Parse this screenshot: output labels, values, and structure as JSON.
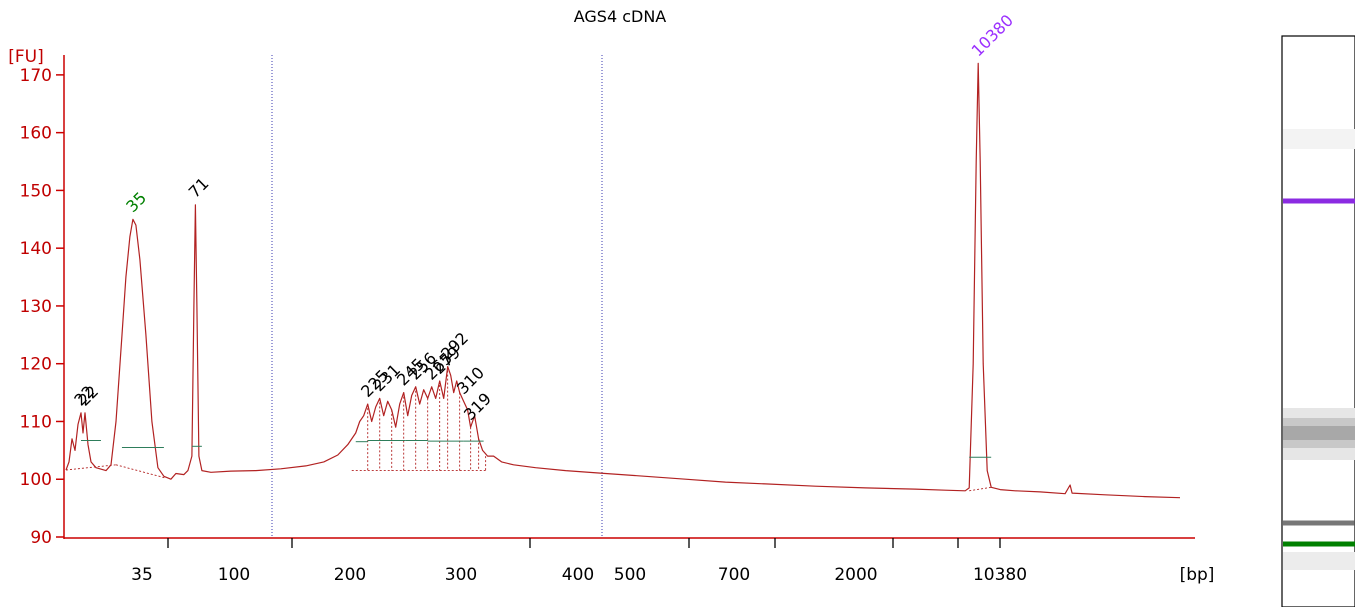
{
  "colors": {
    "axis": "#cc0000",
    "trace": "#b22222",
    "marker_lower": "#008000",
    "marker_upper": "#9b30ff",
    "peak_label": "#000000",
    "guide": "#3a3ab0",
    "baseline": "#2e7d5b"
  },
  "chart_data": {
    "type": "line",
    "title": "AGS4 cDNA",
    "ylabel": "[FU]",
    "xlabel": "[bp]",
    "ylim": [
      90,
      175
    ],
    "yticks": [
      90,
      100,
      110,
      120,
      130,
      140,
      150,
      160,
      170
    ],
    "xtick_labels": [
      "35",
      "100",
      "200",
      "300",
      "400",
      "500",
      "700",
      "2000",
      "10380"
    ],
    "grid": false,
    "series": [
      {
        "values": [
          [
            0,
            101.6
          ],
          [
            3,
            103
          ],
          [
            6,
            107
          ],
          [
            9,
            105
          ],
          [
            12,
            109.5
          ],
          [
            15,
            111.5
          ],
          [
            17,
            108
          ],
          [
            19,
            111.5
          ],
          [
            22,
            106
          ],
          [
            25,
            103
          ],
          [
            30,
            102
          ],
          [
            40,
            101.5
          ],
          [
            45,
            102.5
          ],
          [
            50,
            110
          ],
          [
            56,
            125
          ],
          [
            60,
            135
          ],
          [
            64,
            142
          ],
          [
            67,
            145
          ],
          [
            70,
            144
          ],
          [
            74,
            138
          ],
          [
            80,
            125
          ],
          [
            86,
            110
          ],
          [
            92,
            102
          ],
          [
            98,
            100.5
          ],
          [
            105,
            100
          ],
          [
            110,
            101
          ],
          [
            118,
            100.8
          ],
          [
            122,
            101.5
          ],
          [
            126,
            104
          ],
          [
            128,
            130
          ],
          [
            129.5,
            147.5
          ],
          [
            131,
            130
          ],
          [
            133,
            104
          ],
          [
            136,
            101.5
          ],
          [
            145,
            101.2
          ],
          [
            165,
            101.4
          ],
          [
            190,
            101.5
          ],
          [
            215,
            101.8
          ],
          [
            240,
            102.3
          ],
          [
            258,
            103
          ],
          [
            272,
            104.2
          ],
          [
            282,
            106
          ],
          [
            290,
            108
          ],
          [
            294,
            110
          ],
          [
            298,
            111
          ],
          [
            302,
            113
          ],
          [
            306,
            110
          ],
          [
            310,
            112.5
          ],
          [
            314,
            114
          ],
          [
            318,
            111
          ],
          [
            322,
            113.5
          ],
          [
            326,
            112
          ],
          [
            330,
            109
          ],
          [
            334,
            113
          ],
          [
            338,
            115
          ],
          [
            342,
            111
          ],
          [
            346,
            114.5
          ],
          [
            350,
            116
          ],
          [
            354,
            113
          ],
          [
            358,
            115.5
          ],
          [
            362,
            114
          ],
          [
            366,
            116
          ],
          [
            370,
            114
          ],
          [
            374,
            117
          ],
          [
            378,
            114
          ],
          [
            382,
            119.5
          ],
          [
            385,
            118
          ],
          [
            388,
            115
          ],
          [
            391,
            117
          ],
          [
            394,
            115
          ],
          [
            398,
            113.5
          ],
          [
            402,
            112
          ],
          [
            405,
            109
          ],
          [
            409,
            111
          ],
          [
            413,
            107
          ],
          [
            417,
            105
          ],
          [
            422,
            104
          ],
          [
            428,
            104
          ],
          [
            436,
            103
          ],
          [
            448,
            102.5
          ],
          [
            470,
            102
          ],
          [
            500,
            101.5
          ],
          [
            540,
            101
          ],
          [
            580,
            100.5
          ],
          [
            620,
            100
          ],
          [
            660,
            99.5
          ],
          [
            700,
            99.2
          ],
          [
            750,
            98.8
          ],
          [
            800,
            98.5
          ],
          [
            850,
            98.3
          ],
          [
            880,
            98.1
          ],
          [
            900,
            98
          ],
          [
            904,
            98.5
          ],
          [
            908,
            120
          ],
          [
            911,
            155
          ],
          [
            913,
            172
          ],
          [
            915,
            155
          ],
          [
            918,
            120
          ],
          [
            922,
            101.5
          ],
          [
            926,
            98.6
          ],
          [
            935,
            98.2
          ],
          [
            950,
            98
          ],
          [
            975,
            97.8
          ],
          [
            1000,
            97.5
          ],
          [
            1005,
            99
          ],
          [
            1007,
            97.6
          ],
          [
            1040,
            97.3
          ],
          [
            1080,
            97
          ],
          [
            1115,
            96.8
          ]
        ]
      }
    ],
    "peaks": [
      {
        "label": "22",
        "x": 15,
        "y": 111.5,
        "color_key": "peak_label"
      },
      {
        "label": "22",
        "x": 19,
        "y": 111.5,
        "color_key": "peak_label"
      },
      {
        "label": "35",
        "x": 67,
        "y": 145,
        "color_key": "marker_lower"
      },
      {
        "label": "71",
        "x": 129.5,
        "y": 147.5,
        "color_key": "peak_label"
      },
      {
        "label": "225",
        "x": 302,
        "y": 113,
        "color_key": "peak_label"
      },
      {
        "label": "231",
        "x": 314,
        "y": 114,
        "color_key": "peak_label"
      },
      {
        "label": "245",
        "x": 338,
        "y": 115,
        "color_key": "peak_label"
      },
      {
        "label": "256",
        "x": 350,
        "y": 116,
        "color_key": "peak_label"
      },
      {
        "label": "265",
        "x": 366,
        "y": 116,
        "color_key": "peak_label"
      },
      {
        "label": "279",
        "x": 374,
        "y": 117,
        "color_key": "peak_label"
      },
      {
        "label": "292",
        "x": 382,
        "y": 119.5,
        "color_key": "peak_label"
      },
      {
        "label": "310",
        "x": 398,
        "y": 113.5,
        "color_key": "peak_label"
      },
      {
        "label": "319",
        "x": 405,
        "y": 109,
        "color_key": "peak_label"
      },
      {
        "label": "10380",
        "x": 913,
        "y": 172,
        "color_key": "marker_upper"
      }
    ],
    "gel": {
      "bands": [
        {
          "y": 152,
          "color": "#8b2be2",
          "intensity": 1.0
        },
        {
          "y": 108,
          "color": "#808080",
          "intensity": 0.45
        },
        {
          "y": 92.5,
          "color": "#555555",
          "intensity": 0.8
        },
        {
          "y": 90.5,
          "color": "#008000",
          "intensity": 1.0
        }
      ]
    }
  }
}
